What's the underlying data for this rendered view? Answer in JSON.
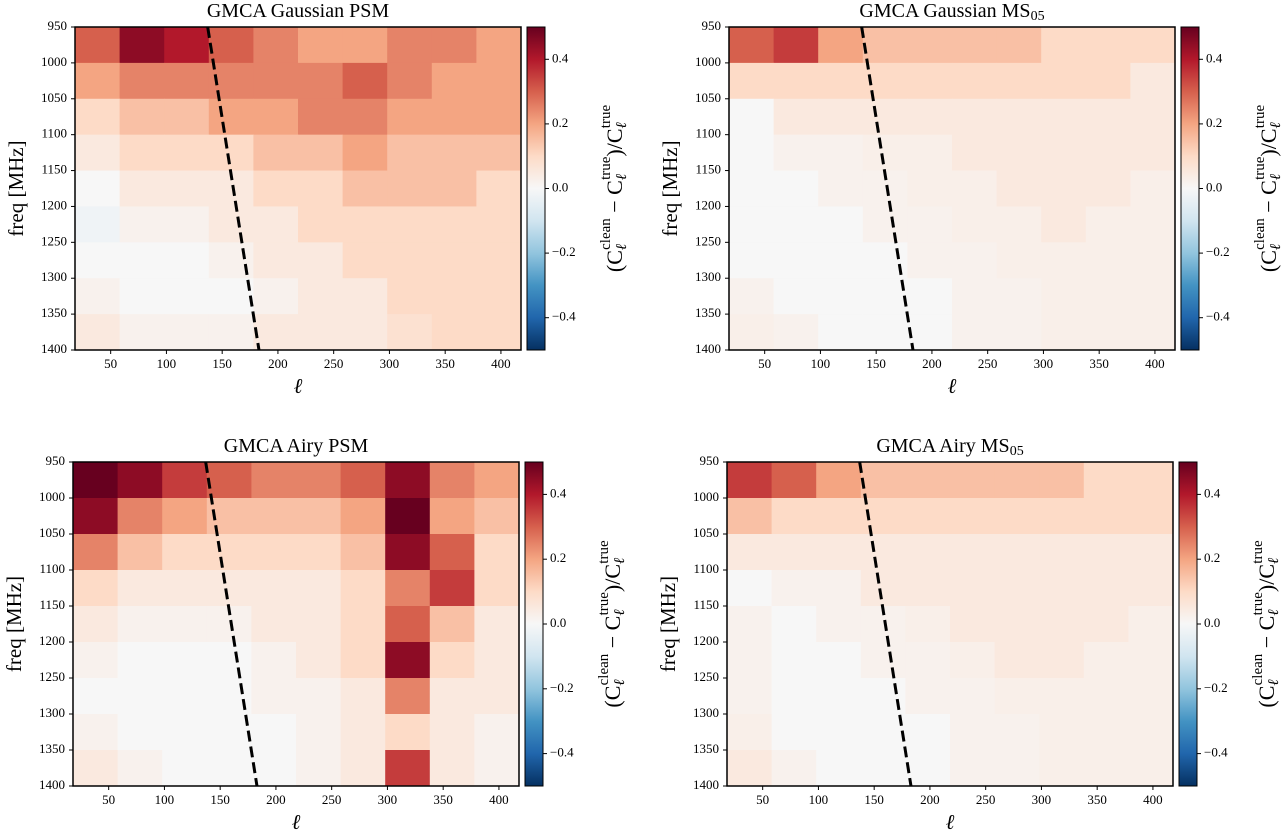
{
  "chart_data": [
    {
      "type": "heatmap",
      "title": "GMCA Gaussian PSM",
      "xlabel": "ℓ",
      "ylabel": "freq [MHz]",
      "x_edges": [
        18,
        58,
        98,
        138,
        178,
        218,
        258,
        298,
        338,
        378,
        418
      ],
      "y_edges": [
        950,
        1000,
        1050,
        1100,
        1150,
        1200,
        1250,
        1300,
        1350,
        1400
      ],
      "values": [
        [
          0.3,
          0.45,
          0.4,
          0.3,
          0.25,
          0.2,
          0.2,
          0.25,
          0.25,
          0.2
        ],
        [
          0.2,
          0.25,
          0.25,
          0.25,
          0.25,
          0.25,
          0.3,
          0.25,
          0.2,
          0.2
        ],
        [
          0.1,
          0.15,
          0.15,
          0.2,
          0.2,
          0.25,
          0.25,
          0.2,
          0.2,
          0.2
        ],
        [
          0.05,
          0.1,
          0.1,
          0.1,
          0.15,
          0.15,
          0.2,
          0.15,
          0.15,
          0.15
        ],
        [
          0,
          0.05,
          0.05,
          0.05,
          0.1,
          0.1,
          0.15,
          0.15,
          0.15,
          0.1
        ],
        [
          -0.02,
          0.02,
          0.02,
          0.05,
          0.05,
          0.1,
          0.1,
          0.1,
          0.1,
          0.1
        ],
        [
          0,
          0,
          0,
          0.02,
          0.05,
          0.05,
          0.1,
          0.1,
          0.1,
          0.1
        ],
        [
          0.02,
          0,
          0,
          0,
          0.02,
          0.05,
          0.05,
          0.1,
          0.1,
          0.1
        ],
        [
          0.05,
          0.02,
          0.02,
          0.02,
          0.05,
          0.05,
          0.05,
          0.08,
          0.1,
          0.1
        ]
      ],
      "xlim": [
        18,
        418
      ],
      "ylim": [
        950,
        1400
      ],
      "xticks": [
        50,
        100,
        150,
        200,
        250,
        300,
        350,
        400
      ],
      "yticks": [
        950,
        1000,
        1050,
        1100,
        1150,
        1200,
        1250,
        1300,
        1350,
        1400
      ],
      "clim": [
        -0.5,
        0.5
      ],
      "cticks": [
        {
          "value": -0.4,
          "label": "−0.4"
        },
        {
          "value": -0.2,
          "label": "−0.2"
        },
        {
          "value": 0,
          "label": "0.0"
        },
        0.2,
        0.4
      ],
      "colorscale": [
        "#053061",
        "#2166ac",
        "#4393c3",
        "#92c5de",
        "#d1e5f0",
        "#f7f7f7",
        "#fddbc7",
        "#f4a582",
        "#d6604d",
        "#b2182b",
        "#67001f"
      ],
      "colorbar_label": [
        "(C",
        "ℓ",
        "clean",
        " − C",
        "ℓ",
        "true",
        ")/C",
        "ℓ",
        "true"
      ],
      "colorbar_label_roles": [
        "base",
        "sub",
        "sup",
        "base",
        "sub",
        "sup",
        "base",
        "sub",
        "sup"
      ],
      "lines": [
        {
          "x": [
            137,
            183
          ],
          "y": [
            950,
            1400
          ],
          "color": "#000000",
          "style": "dashed"
        }
      ]
    },
    {
      "type": "heatmap",
      "title": "GMCA Gaussian MS",
      "title_subscript": "05",
      "xlabel": "ℓ",
      "ylabel": "freq [MHz]",
      "x_edges": [
        18,
        58,
        98,
        138,
        178,
        218,
        258,
        298,
        338,
        378,
        418
      ],
      "y_edges": [
        950,
        1000,
        1050,
        1100,
        1150,
        1200,
        1250,
        1300,
        1350,
        1400
      ],
      "values": [
        [
          0.3,
          0.35,
          0.2,
          0.15,
          0.15,
          0.15,
          0.15,
          0.1,
          0.1,
          0.1
        ],
        [
          0.1,
          0.1,
          0.1,
          0.1,
          0.1,
          0.1,
          0.1,
          0.1,
          0.1,
          0.05
        ],
        [
          0,
          0.05,
          0.05,
          0.05,
          0.05,
          0.05,
          0.05,
          0.05,
          0.05,
          0.05
        ],
        [
          0,
          0.02,
          0.02,
          0.03,
          0.03,
          0.05,
          0.05,
          0.05,
          0.05,
          0.05
        ],
        [
          0,
          0,
          0.02,
          0.02,
          0.03,
          0.03,
          0.05,
          0.05,
          0.05,
          0.03
        ],
        [
          0,
          0,
          0,
          0.02,
          0.02,
          0.03,
          0.03,
          0.05,
          0.03,
          0.03
        ],
        [
          0,
          0,
          0,
          0,
          0.02,
          0.02,
          0.03,
          0.03,
          0.03,
          0.03
        ],
        [
          0.02,
          0,
          0,
          0,
          0,
          0.02,
          0.02,
          0.03,
          0.03,
          0.03
        ],
        [
          0.03,
          0.02,
          0,
          0,
          0,
          0.02,
          0.02,
          0.03,
          0.03,
          0.03
        ]
      ],
      "xlim": [
        18,
        418
      ],
      "ylim": [
        950,
        1400
      ],
      "xticks": [
        50,
        100,
        150,
        200,
        250,
        300,
        350,
        400
      ],
      "yticks": [
        950,
        1000,
        1050,
        1100,
        1150,
        1200,
        1250,
        1300,
        1350,
        1400
      ],
      "clim": [
        -0.5,
        0.5
      ],
      "cticks": [
        {
          "value": -0.4,
          "label": "−0.4"
        },
        {
          "value": -0.2,
          "label": "−0.2"
        },
        {
          "value": 0,
          "label": "0.0"
        },
        0.2,
        0.4
      ],
      "colorscale": [
        "#053061",
        "#2166ac",
        "#4393c3",
        "#92c5de",
        "#d1e5f0",
        "#f7f7f7",
        "#fddbc7",
        "#f4a582",
        "#d6604d",
        "#b2182b",
        "#67001f"
      ],
      "colorbar_label": [
        "(C",
        "ℓ",
        "clean",
        " − C",
        "ℓ",
        "true",
        ")/C",
        "ℓ",
        "true"
      ],
      "colorbar_label_roles": [
        "base",
        "sub",
        "sup",
        "base",
        "sub",
        "sup",
        "base",
        "sub",
        "sup"
      ],
      "lines": [
        {
          "x": [
            137,
            183
          ],
          "y": [
            950,
            1400
          ],
          "color": "#000000",
          "style": "dashed"
        }
      ]
    },
    {
      "type": "heatmap",
      "title": "GMCA Airy PSM",
      "xlabel": "ℓ",
      "ylabel": "freq [MHz]",
      "x_edges": [
        18,
        58,
        98,
        138,
        178,
        218,
        258,
        298,
        338,
        378,
        418
      ],
      "y_edges": [
        950,
        1000,
        1050,
        1100,
        1150,
        1200,
        1250,
        1300,
        1350,
        1400
      ],
      "values": [
        [
          0.5,
          0.45,
          0.35,
          0.3,
          0.25,
          0.25,
          0.3,
          0.45,
          0.25,
          0.2
        ],
        [
          0.45,
          0.25,
          0.2,
          0.15,
          0.15,
          0.15,
          0.2,
          0.5,
          0.2,
          0.15
        ],
        [
          0.25,
          0.15,
          0.1,
          0.1,
          0.1,
          0.1,
          0.15,
          0.45,
          0.3,
          0.1
        ],
        [
          0.1,
          0.05,
          0.05,
          0.05,
          0.05,
          0.05,
          0.1,
          0.25,
          0.35,
          0.1
        ],
        [
          0.05,
          0.02,
          0.02,
          0.02,
          0.05,
          0.05,
          0.1,
          0.3,
          0.15,
          0.05
        ],
        [
          0.02,
          0,
          0,
          0,
          0.02,
          0.05,
          0.1,
          0.45,
          0.1,
          0.05
        ],
        [
          0,
          0,
          0,
          0,
          0.02,
          0.02,
          0.05,
          0.25,
          0.05,
          0.05
        ],
        [
          0.02,
          0,
          0,
          0,
          0,
          0.02,
          0.05,
          0.1,
          0.05,
          0.02
        ],
        [
          0.05,
          0.02,
          0,
          0,
          0,
          0.02,
          0.05,
          0.35,
          0.05,
          0.02
        ]
      ],
      "xlim": [
        18,
        418
      ],
      "ylim": [
        950,
        1400
      ],
      "xticks": [
        50,
        100,
        150,
        200,
        250,
        300,
        350,
        400
      ],
      "yticks": [
        950,
        1000,
        1050,
        1100,
        1150,
        1200,
        1250,
        1300,
        1350,
        1400
      ],
      "clim": [
        -0.5,
        0.5
      ],
      "cticks": [
        {
          "value": -0.4,
          "label": "−0.4"
        },
        {
          "value": -0.2,
          "label": "−0.2"
        },
        {
          "value": 0,
          "label": "0.0"
        },
        0.2,
        0.4
      ],
      "colorscale": [
        "#053061",
        "#2166ac",
        "#4393c3",
        "#92c5de",
        "#d1e5f0",
        "#f7f7f7",
        "#fddbc7",
        "#f4a582",
        "#d6604d",
        "#b2182b",
        "#67001f"
      ],
      "colorbar_label": [
        "(C",
        "ℓ",
        "clean",
        " − C",
        "ℓ",
        "true",
        ")/C",
        "ℓ",
        "true"
      ],
      "colorbar_label_roles": [
        "base",
        "sub",
        "sup",
        "base",
        "sub",
        "sup",
        "base",
        "sub",
        "sup"
      ],
      "lines": [
        {
          "x": [
            137,
            183
          ],
          "y": [
            950,
            1400
          ],
          "color": "#000000",
          "style": "dashed"
        }
      ]
    },
    {
      "type": "heatmap",
      "title": "GMCA Airy MS",
      "title_subscript": "05",
      "xlabel": "ℓ",
      "ylabel": "freq [MHz]",
      "x_edges": [
        18,
        58,
        98,
        138,
        178,
        218,
        258,
        298,
        338,
        378,
        418
      ],
      "y_edges": [
        950,
        1000,
        1050,
        1100,
        1150,
        1200,
        1250,
        1300,
        1350,
        1400
      ],
      "values": [
        [
          0.35,
          0.3,
          0.2,
          0.15,
          0.15,
          0.15,
          0.15,
          0.15,
          0.1,
          0.1
        ],
        [
          0.15,
          0.1,
          0.1,
          0.1,
          0.1,
          0.1,
          0.1,
          0.1,
          0.1,
          0.1
        ],
        [
          0.05,
          0.05,
          0.05,
          0.05,
          0.05,
          0.05,
          0.05,
          0.05,
          0.05,
          0.05
        ],
        [
          0,
          0.02,
          0.02,
          0.05,
          0.05,
          0.05,
          0.05,
          0.05,
          0.05,
          0.05
        ],
        [
          0.02,
          0,
          0.02,
          0.02,
          0.03,
          0.05,
          0.05,
          0.05,
          0.05,
          0.03
        ],
        [
          0.02,
          0,
          0,
          0.02,
          0.02,
          0.03,
          0.05,
          0.05,
          0.03,
          0.03
        ],
        [
          0.02,
          0,
          0,
          0,
          0.02,
          0.02,
          0.03,
          0.03,
          0.03,
          0.03
        ],
        [
          0.03,
          0,
          0,
          0,
          0,
          0.02,
          0.02,
          0.03,
          0.03,
          0.03
        ],
        [
          0.05,
          0.02,
          0,
          0,
          0,
          0.02,
          0.02,
          0.03,
          0.03,
          0.03
        ]
      ],
      "xlim": [
        18,
        418
      ],
      "ylim": [
        950,
        1400
      ],
      "xticks": [
        50,
        100,
        150,
        200,
        250,
        300,
        350,
        400
      ],
      "yticks": [
        950,
        1000,
        1050,
        1100,
        1150,
        1200,
        1250,
        1300,
        1350,
        1400
      ],
      "clim": [
        -0.5,
        0.5
      ],
      "cticks": [
        {
          "value": -0.4,
          "label": "−0.4"
        },
        {
          "value": -0.2,
          "label": "−0.2"
        },
        {
          "value": 0,
          "label": "0.0"
        },
        0.2,
        0.4
      ],
      "colorscale": [
        "#053061",
        "#2166ac",
        "#4393c3",
        "#92c5de",
        "#d1e5f0",
        "#f7f7f7",
        "#fddbc7",
        "#f4a582",
        "#d6604d",
        "#b2182b",
        "#67001f"
      ],
      "colorbar_label": [
        "(C",
        "ℓ",
        "clean",
        " − C",
        "ℓ",
        "true",
        ")/C",
        "ℓ",
        "true"
      ],
      "colorbar_label_roles": [
        "base",
        "sub",
        "sup",
        "base",
        "sub",
        "sup",
        "base",
        "sub",
        "sup"
      ],
      "lines": [
        {
          "x": [
            137,
            183
          ],
          "y": [
            950,
            1400
          ],
          "color": "#000000",
          "style": "dashed"
        }
      ]
    }
  ]
}
